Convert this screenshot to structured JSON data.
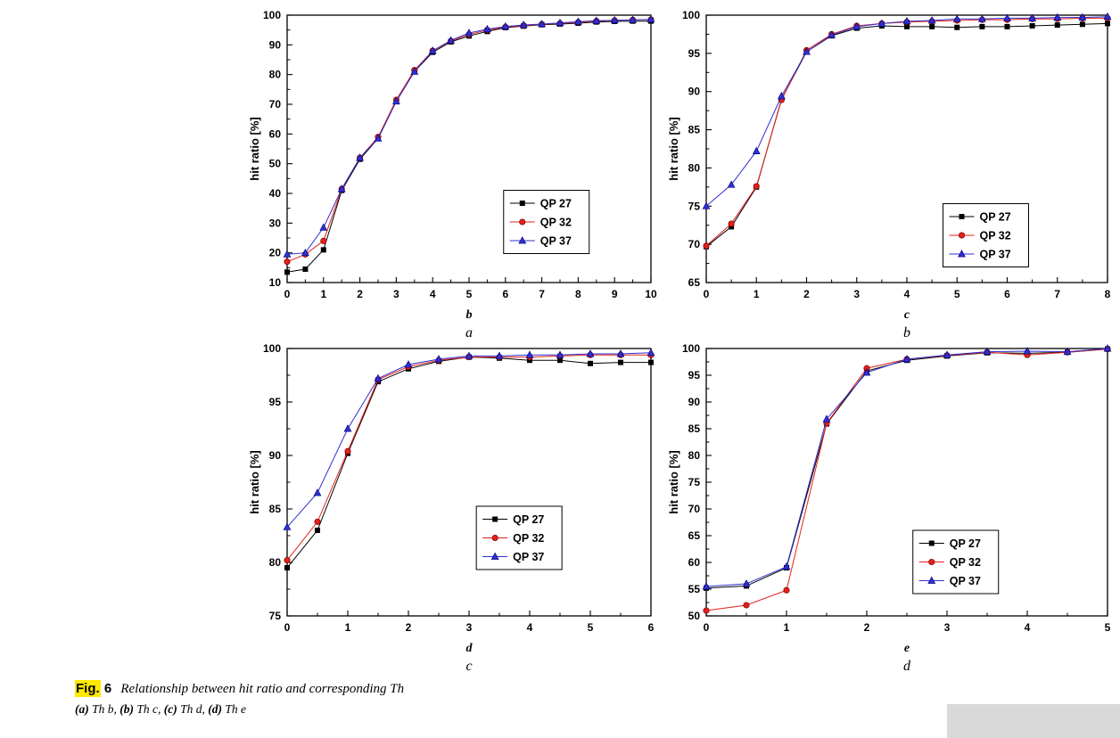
{
  "caption": {
    "fig_label": "Fig.",
    "fig_number": "6",
    "title": "Relationship between hit ratio and corresponding Th",
    "parts": [
      {
        "label": "(a)",
        "text": " Th b, "
      },
      {
        "label": "(b)",
        "text": " Th c, "
      },
      {
        "label": "(c)",
        "text": " Th d, "
      },
      {
        "label": "(d)",
        "text": " Th e"
      }
    ]
  },
  "colors": {
    "qp27": "#000000",
    "qp32": "#e32119",
    "qp37": "#3030d0"
  },
  "chart_data": [
    {
      "type": "line",
      "xlabel": "b",
      "ylabel": "hit ratio [%]",
      "sublabel": "a",
      "xlim": [
        0,
        10
      ],
      "ylim": [
        10,
        100
      ],
      "xticks": [
        0,
        1,
        2,
        3,
        4,
        5,
        6,
        7,
        8,
        9,
        10
      ],
      "yticks": [
        10,
        20,
        30,
        40,
        50,
        60,
        70,
        80,
        90,
        100
      ],
      "legend": {
        "fx": 0.595,
        "fy": 0.655
      },
      "x": [
        0,
        0.5,
        1,
        1.5,
        2,
        2.5,
        3,
        3.5,
        4,
        4.5,
        5,
        5.5,
        6,
        6.5,
        7,
        7.5,
        8,
        8.5,
        9,
        9.5,
        10
      ],
      "series": [
        {
          "name": "QP 27",
          "marker": "square",
          "color": "#000000",
          "values": [
            13.5,
            14.5,
            21,
            41,
            51.5,
            58.5,
            71,
            81,
            87.5,
            91,
            93,
            94.5,
            95.8,
            96.3,
            96.8,
            97,
            97.3,
            97.7,
            97.9,
            98,
            98
          ]
        },
        {
          "name": "QP 32",
          "marker": "circle",
          "color": "#e32119",
          "values": [
            17,
            19.5,
            24,
            41.5,
            52,
            59,
            71.5,
            81.5,
            88,
            91.3,
            93.5,
            95,
            96,
            96.5,
            96.9,
            97.2,
            97.6,
            98,
            98.2,
            98.4,
            98.5
          ]
        },
        {
          "name": "QP 37",
          "marker": "triangle",
          "color": "#3030d0",
          "values": [
            19.5,
            20,
            28.5,
            41.5,
            52,
            58.5,
            71,
            81,
            88,
            91.5,
            94,
            95.3,
            96.2,
            96.7,
            97,
            97.4,
            97.8,
            98.1,
            98.3,
            98.4,
            98.6
          ]
        }
      ]
    },
    {
      "type": "line",
      "xlabel": "c",
      "ylabel": "hit ratio [%]",
      "sublabel": "b",
      "xlim": [
        0,
        8
      ],
      "ylim": [
        65,
        100
      ],
      "xticks": [
        0,
        1,
        2,
        3,
        4,
        5,
        6,
        7,
        8
      ],
      "yticks": [
        65,
        70,
        75,
        80,
        85,
        90,
        95,
        100
      ],
      "legend": {
        "fx": 0.59,
        "fy": 0.705
      },
      "x": [
        0,
        0.5,
        1,
        1.5,
        2,
        2.5,
        3,
        3.5,
        4,
        4.5,
        5,
        5.5,
        6,
        6.5,
        7,
        7.5,
        8
      ],
      "series": [
        {
          "name": "QP 27",
          "marker": "square",
          "color": "#000000",
          "values": [
            69.7,
            72.3,
            77.5,
            89,
            95.2,
            97.3,
            98.3,
            98.6,
            98.5,
            98.5,
            98.4,
            98.5,
            98.5,
            98.6,
            98.7,
            98.8,
            98.9
          ]
        },
        {
          "name": "QP 32",
          "marker": "circle",
          "color": "#e32119",
          "values": [
            69.8,
            72.7,
            77.6,
            88.9,
            95.4,
            97.5,
            98.6,
            98.9,
            99.1,
            99.2,
            99.3,
            99.4,
            99.4,
            99.5,
            99.5,
            99.6,
            99.6
          ]
        },
        {
          "name": "QP 37",
          "marker": "triangle",
          "color": "#3030d0",
          "values": [
            75,
            77.8,
            82.2,
            89.4,
            95.2,
            97.4,
            98.5,
            98.9,
            99.2,
            99.3,
            99.5,
            99.5,
            99.6,
            99.6,
            99.7,
            99.7,
            99.8
          ]
        }
      ]
    },
    {
      "type": "line",
      "xlabel": "d",
      "ylabel": "hit ratio [%]",
      "sublabel": "c",
      "xlim": [
        0,
        6
      ],
      "ylim": [
        75,
        100
      ],
      "xticks": [
        0,
        1,
        2,
        3,
        4,
        5,
        6
      ],
      "yticks": [
        75,
        80,
        85,
        90,
        95,
        100
      ],
      "legend": {
        "fx": 0.52,
        "fy": 0.59
      },
      "x": [
        0,
        0.5,
        1,
        1.5,
        2,
        2.5,
        3,
        3.5,
        4,
        4.5,
        5,
        5.5,
        6
      ],
      "series": [
        {
          "name": "QP 27",
          "marker": "square",
          "color": "#000000",
          "values": [
            79.5,
            83,
            90.2,
            96.9,
            98.1,
            98.8,
            99.2,
            99.1,
            98.9,
            98.9,
            98.6,
            98.7,
            98.7
          ]
        },
        {
          "name": "QP 32",
          "marker": "circle",
          "color": "#e32119",
          "values": [
            80.2,
            83.8,
            90.4,
            97.1,
            98.3,
            98.9,
            99.2,
            99.2,
            99.2,
            99.3,
            99.4,
            99.4,
            99.4
          ]
        },
        {
          "name": "QP 37",
          "marker": "triangle",
          "color": "#3030d0",
          "values": [
            83.3,
            86.5,
            92.5,
            97.2,
            98.5,
            99,
            99.3,
            99.3,
            99.4,
            99.4,
            99.5,
            99.5,
            99.6
          ]
        }
      ]
    },
    {
      "type": "line",
      "xlabel": "e",
      "ylabel": "hit ratio [%]",
      "sublabel": "d",
      "xlim": [
        0,
        5
      ],
      "ylim": [
        50,
        100
      ],
      "xticks": [
        0,
        1,
        2,
        3,
        4,
        5
      ],
      "yticks": [
        50,
        55,
        60,
        65,
        70,
        75,
        80,
        85,
        90,
        95,
        100
      ],
      "legend": {
        "fx": 0.515,
        "fy": 0.68
      },
      "x": [
        0,
        0.5,
        1,
        1.5,
        2,
        2.5,
        3,
        3.5,
        4,
        4.5,
        5
      ],
      "series": [
        {
          "name": "QP 27",
          "marker": "square",
          "color": "#000000",
          "values": [
            55.2,
            55.6,
            59,
            85.9,
            95.8,
            97.8,
            98.6,
            99.2,
            99.1,
            99.3,
            99.9
          ]
        },
        {
          "name": "QP 32",
          "marker": "circle",
          "color": "#e32119",
          "values": [
            51,
            52,
            54.8,
            86,
            96.3,
            98,
            98.7,
            99.3,
            98.8,
            99.3,
            99.9
          ]
        },
        {
          "name": "QP 37",
          "marker": "triangle",
          "color": "#3030d0",
          "values": [
            55.5,
            56,
            59.2,
            86.8,
            95.5,
            98,
            98.8,
            99.4,
            99.5,
            99.4,
            100
          ]
        }
      ]
    }
  ]
}
